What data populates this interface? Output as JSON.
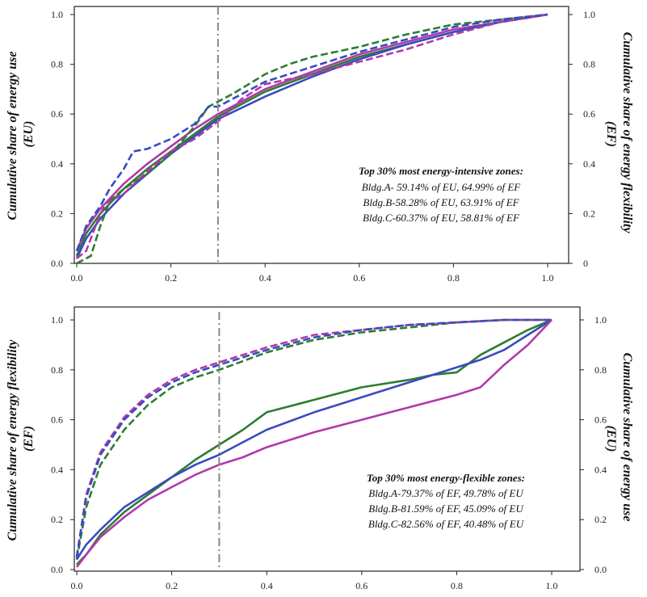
{
  "chart_data": [
    {
      "type": "line",
      "xlim": [
        0,
        1.0
      ],
      "ylim": [
        0,
        1.0
      ],
      "xticks": [
        "0.0",
        "0.2",
        "0.4",
        "0.6",
        "0.8",
        "1.0"
      ],
      "yticks": [
        "0.0",
        "0.2",
        "0.4",
        "0.6",
        "0.8",
        "1.0"
      ],
      "yticks_right": [
        "0",
        "0.2",
        "0.4",
        "0.6",
        "0.8",
        "1.0"
      ],
      "ylabel_left": [
        "Cumulative share of energy use",
        "(EU)"
      ],
      "ylabel_right": [
        "Cumulative share of energy flexibility",
        "(EF)"
      ],
      "vline_x": 0.3,
      "annotation": [
        "Top 30% most energy-intensive zones:",
        "Bldg.A- 59.14% of EU, 64.99% of EF",
        "Bldg.B-58.28% of EU, 63.91% of EF",
        "Bldg.C-60.37% of EU, 58.81% of EF"
      ],
      "series": [
        {
          "color": "#2e7d32",
          "dashed": false,
          "x": [
            0,
            0.02,
            0.05,
            0.1,
            0.15,
            0.2,
            0.25,
            0.3,
            0.4,
            0.5,
            0.6,
            0.7,
            0.8,
            0.9,
            1.0
          ],
          "y": [
            0.03,
            0.12,
            0.2,
            0.3,
            0.38,
            0.45,
            0.52,
            0.59,
            0.69,
            0.76,
            0.83,
            0.88,
            0.93,
            0.97,
            1.0
          ]
        },
        {
          "color": "#b03aa8",
          "dashed": false,
          "x": [
            0,
            0.02,
            0.05,
            0.1,
            0.15,
            0.2,
            0.25,
            0.3,
            0.4,
            0.5,
            0.6,
            0.7,
            0.8,
            0.9,
            1.0
          ],
          "y": [
            0.05,
            0.14,
            0.22,
            0.32,
            0.4,
            0.47,
            0.54,
            0.6,
            0.7,
            0.77,
            0.84,
            0.89,
            0.94,
            0.97,
            1.0
          ]
        },
        {
          "color": "#3a4bbf",
          "dashed": false,
          "x": [
            0,
            0.02,
            0.05,
            0.1,
            0.15,
            0.2,
            0.25,
            0.3,
            0.4,
            0.5,
            0.6,
            0.7,
            0.8,
            0.9,
            1.0
          ],
          "y": [
            0.02,
            0.1,
            0.18,
            0.28,
            0.36,
            0.44,
            0.51,
            0.58,
            0.67,
            0.75,
            0.82,
            0.88,
            0.93,
            0.97,
            1.0
          ]
        },
        {
          "color": "#2e7d32",
          "dashed": true,
          "x": [
            0,
            0.03,
            0.05,
            0.07,
            0.1,
            0.15,
            0.2,
            0.25,
            0.28,
            0.3,
            0.33,
            0.4,
            0.45,
            0.5,
            0.6,
            0.7,
            0.8,
            0.9,
            1.0
          ],
          "y": [
            0,
            0.03,
            0.15,
            0.25,
            0.3,
            0.36,
            0.44,
            0.55,
            0.63,
            0.65,
            0.68,
            0.76,
            0.8,
            0.83,
            0.87,
            0.92,
            0.96,
            0.98,
            1.0
          ]
        },
        {
          "color": "#b03aa8",
          "dashed": true,
          "x": [
            0,
            0.02,
            0.04,
            0.06,
            0.1,
            0.15,
            0.2,
            0.25,
            0.3,
            0.35,
            0.4,
            0.5,
            0.6,
            0.7,
            0.8,
            0.9,
            1.0
          ],
          "y": [
            0.02,
            0.05,
            0.15,
            0.24,
            0.28,
            0.37,
            0.45,
            0.5,
            0.57,
            0.66,
            0.72,
            0.76,
            0.81,
            0.86,
            0.92,
            0.97,
            1.0
          ]
        },
        {
          "color": "#3a4bbf",
          "dashed": true,
          "x": [
            0,
            0.02,
            0.05,
            0.07,
            0.1,
            0.12,
            0.15,
            0.2,
            0.25,
            0.28,
            0.3,
            0.35,
            0.4,
            0.5,
            0.6,
            0.7,
            0.8,
            0.9,
            1.0
          ],
          "y": [
            0.05,
            0.15,
            0.23,
            0.3,
            0.38,
            0.45,
            0.46,
            0.5,
            0.56,
            0.63,
            0.63,
            0.68,
            0.73,
            0.79,
            0.85,
            0.9,
            0.95,
            0.98,
            1.0
          ]
        }
      ]
    },
    {
      "type": "line",
      "xlim": [
        0,
        1.0
      ],
      "ylim": [
        0,
        1.0
      ],
      "xticks": [
        "0.0",
        "0.2",
        "0.4",
        "0.6",
        "0.8",
        "1.0"
      ],
      "yticks": [
        "0.0",
        "0.2",
        "0.4",
        "0.6",
        "0.8",
        "1.0"
      ],
      "yticks_right": [
        "0.0",
        "0.2",
        "0.4",
        "0.6",
        "0.8",
        "1.0"
      ],
      "ylabel_left": [
        "Cumulative share of energy flexibility",
        "(EF)"
      ],
      "ylabel_right": [
        "Cumulative share of energy use",
        "(EU)"
      ],
      "vline_x": 0.3,
      "annotation": [
        "Top 30% most energy-flexible zones:",
        "Bldg.A-79.37% of EF, 49.78% of EU",
        "Bldg.B-81.59% of EF, 45.09% of EU",
        "Bldg.C-82.56% of EF, 40.48% of EU"
      ],
      "series": [
        {
          "color": "#2e7d32",
          "dashed": true,
          "x": [
            0,
            0.02,
            0.05,
            0.1,
            0.15,
            0.2,
            0.25,
            0.3,
            0.4,
            0.5,
            0.6,
            0.7,
            0.8,
            0.9,
            1.0
          ],
          "y": [
            0.04,
            0.25,
            0.42,
            0.56,
            0.66,
            0.73,
            0.77,
            0.8,
            0.87,
            0.92,
            0.95,
            0.97,
            0.99,
            1.0,
            1.0
          ]
        },
        {
          "color": "#b03aa8",
          "dashed": true,
          "x": [
            0,
            0.02,
            0.05,
            0.1,
            0.15,
            0.2,
            0.25,
            0.3,
            0.4,
            0.5,
            0.6,
            0.7,
            0.8,
            0.9,
            1.0
          ],
          "y": [
            0.05,
            0.3,
            0.47,
            0.61,
            0.7,
            0.76,
            0.8,
            0.83,
            0.89,
            0.94,
            0.96,
            0.98,
            0.99,
            1.0,
            1.0
          ]
        },
        {
          "color": "#3a4bbf",
          "dashed": true,
          "x": [
            0,
            0.02,
            0.05,
            0.1,
            0.15,
            0.2,
            0.25,
            0.3,
            0.4,
            0.5,
            0.6,
            0.7,
            0.8,
            0.9,
            1.0
          ],
          "y": [
            0.05,
            0.29,
            0.46,
            0.6,
            0.69,
            0.75,
            0.79,
            0.82,
            0.88,
            0.93,
            0.96,
            0.98,
            0.99,
            1.0,
            1.0
          ]
        },
        {
          "color": "#2e7d32",
          "dashed": false,
          "x": [
            0,
            0.02,
            0.05,
            0.1,
            0.15,
            0.2,
            0.25,
            0.3,
            0.35,
            0.4,
            0.5,
            0.6,
            0.7,
            0.75,
            0.8,
            0.85,
            0.9,
            0.95,
            1.0
          ],
          "y": [
            0.02,
            0.06,
            0.14,
            0.23,
            0.3,
            0.37,
            0.44,
            0.5,
            0.56,
            0.63,
            0.68,
            0.73,
            0.76,
            0.78,
            0.79,
            0.86,
            0.91,
            0.96,
            1.0
          ]
        },
        {
          "color": "#3a4bbf",
          "dashed": false,
          "x": [
            0,
            0.02,
            0.05,
            0.1,
            0.15,
            0.2,
            0.25,
            0.3,
            0.35,
            0.4,
            0.5,
            0.6,
            0.7,
            0.8,
            0.85,
            0.9,
            0.95,
            1.0
          ],
          "y": [
            0.04,
            0.1,
            0.16,
            0.25,
            0.31,
            0.37,
            0.42,
            0.46,
            0.51,
            0.56,
            0.63,
            0.69,
            0.75,
            0.81,
            0.84,
            0.88,
            0.94,
            1.0
          ]
        },
        {
          "color": "#b03aa8",
          "dashed": false,
          "x": [
            0,
            0.02,
            0.05,
            0.1,
            0.15,
            0.2,
            0.25,
            0.3,
            0.35,
            0.4,
            0.5,
            0.6,
            0.7,
            0.8,
            0.85,
            0.9,
            0.95,
            1.0
          ],
          "y": [
            0.01,
            0.06,
            0.13,
            0.21,
            0.28,
            0.33,
            0.38,
            0.42,
            0.45,
            0.49,
            0.55,
            0.6,
            0.65,
            0.7,
            0.73,
            0.82,
            0.9,
            1.0
          ]
        }
      ]
    }
  ]
}
